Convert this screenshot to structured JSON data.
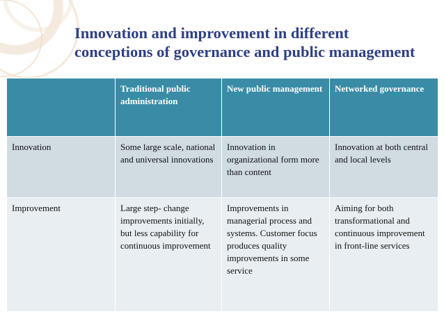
{
  "slide": {
    "title_lines": [
      "Innovation and improvement in different",
      "conceptions of governance and public management"
    ]
  },
  "colors": {
    "title": "#2f3f86",
    "header_bg": "#3a8ca6",
    "row1_bg": "#d0dbe2",
    "row2_bg": "#e8eef2"
  },
  "table": {
    "headers": [
      "",
      "Traditional public administration",
      "New public management",
      "Networked governance"
    ],
    "rows": [
      {
        "label": "Innovation",
        "cells": [
          "Some large scale, national and universal innovations",
          "Innovation in organizational form more than content",
          "Innovation at both central and local levels"
        ]
      },
      {
        "label": "Improvement",
        "cells": [
          "Large step- change improvements initially, but less capability for continuous improvement",
          "Improvements in managerial process and systems. Customer focus produces quality improvements in some service",
          "Aiming for both transformational and continuous improvement in front-line services"
        ]
      }
    ]
  }
}
